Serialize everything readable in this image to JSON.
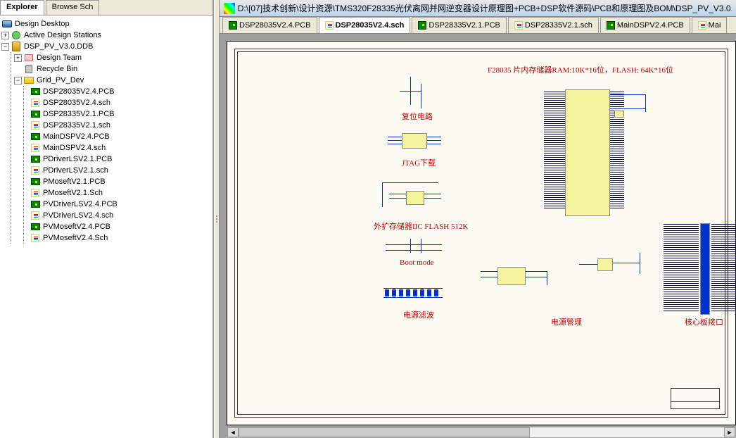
{
  "leftTabs": {
    "active": "Explorer",
    "inactive": "Browse Sch"
  },
  "tree": {
    "root1": "Design Desktop",
    "root2": "Active Design Stations",
    "ddb": "DSP_PV_V3.0.DDB",
    "team": "Design Team",
    "recycle": "Recycle Bin",
    "folder": "Grid_PV_Dev",
    "files": [
      {
        "name": "DSP28035V2.4.PCB",
        "type": "pcb"
      },
      {
        "name": "DSP28035V2.4.sch",
        "type": "sch"
      },
      {
        "name": "DSP28335V2.1.PCB",
        "type": "pcb"
      },
      {
        "name": "DSP28335V2.1.sch",
        "type": "sch"
      },
      {
        "name": "MainDSPV2.4.PCB",
        "type": "pcb"
      },
      {
        "name": "MainDSPV2.4.sch",
        "type": "sch"
      },
      {
        "name": "PDriverLSV2.1.PCB",
        "type": "pcb"
      },
      {
        "name": "PDriverLSV2.1.sch",
        "type": "sch"
      },
      {
        "name": "PMoseftV2.1.PCB",
        "type": "pcb"
      },
      {
        "name": "PMoseftV2.1.Sch",
        "type": "sch"
      },
      {
        "name": "PVDriverLSV2.4.PCB",
        "type": "pcb"
      },
      {
        "name": "PVDriverLSV2.4.sch",
        "type": "sch"
      },
      {
        "name": "PVMoseftV2.4.PCB",
        "type": "pcb"
      },
      {
        "name": "PVMoseftV2.4.Sch",
        "type": "sch"
      }
    ]
  },
  "titleBar": "D:\\[07]技术创新\\设计资源\\TMS320F28335光伏离网并网逆变器设计原理图+PCB+DSP软件源码\\PCB和原理图及BOM\\DSP_PV_V3.0.D",
  "docTabs": [
    {
      "label": "DSP28035V2.4.PCB",
      "type": "pcb",
      "active": false
    },
    {
      "label": "DSP28035V2.4.sch",
      "type": "sch",
      "active": true
    },
    {
      "label": "DSP28335V2.1.PCB",
      "type": "pcb",
      "active": false
    },
    {
      "label": "DSP28335V2.1.sch",
      "type": "sch",
      "active": false
    },
    {
      "label": "MainDSPV2.4.PCB",
      "type": "pcb",
      "active": false
    },
    {
      "label": "Mai",
      "type": "sch",
      "active": false
    }
  ],
  "schematic": {
    "mainNote": "F28035 片内存储器RAM:10K*16位，FLASH: 64K*16位",
    "reset": "复位电路",
    "jtag": "JTAG下载",
    "extFlash": "外扩存储器IIC FLASH 512K",
    "bootMode": "Boot mode",
    "powerFilter": "电源滤波",
    "powerMgmt": "电源管理",
    "coreBoard": "核心板接口",
    "colors": {
      "wire": "#0033cc",
      "chip": "#f5f5a0",
      "text": "#c00000",
      "canvas": "#fcfcf4",
      "border": "#333333"
    }
  }
}
